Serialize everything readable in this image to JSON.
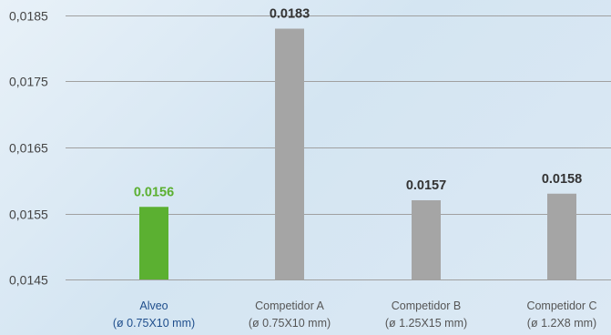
{
  "chart_data": {
    "type": "bar",
    "title": "",
    "xlabel": "",
    "ylabel": "",
    "ylim": [
      0.0145,
      0.0185
    ],
    "yticks": [
      "0,0185",
      "0,0175",
      "0,0165",
      "0,0155",
      "0,0145"
    ],
    "ytick_values": [
      0.0185,
      0.0175,
      0.0165,
      0.0155,
      0.0145
    ],
    "grid": true,
    "categories": [
      {
        "name": "Alveo",
        "detail": "(ø 0.75X10 mm)"
      },
      {
        "name": "Competidor A",
        "detail": "(ø 0.75X10 mm)"
      },
      {
        "name": "Competidor B",
        "detail": "(ø 1.25X15 mm)"
      },
      {
        "name": "Competidor C",
        "detail": "(ø 1.2X8 mm)"
      }
    ],
    "values": [
      0.0156,
      0.0183,
      0.0157,
      0.0158
    ],
    "value_labels": [
      "0.0156",
      "0.0183",
      "0.0157",
      "0.0158"
    ],
    "colors": {
      "highlight_bar": "#5bb031",
      "highlight_label": "#5bb031",
      "highlight_category": "#1f4e8c",
      "bar": "#a5a5a5",
      "label": "#333333",
      "category": "#555555",
      "grid": "#a0a0a0"
    }
  }
}
